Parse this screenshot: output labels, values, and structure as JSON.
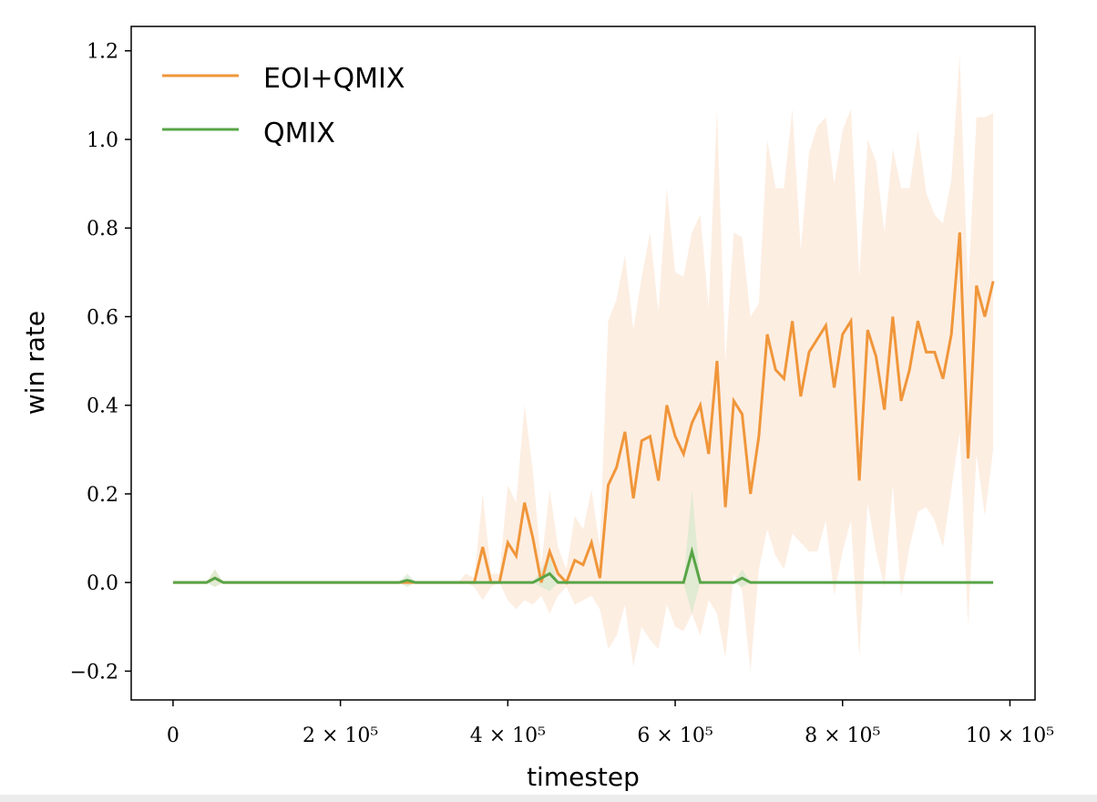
{
  "chart_data": {
    "type": "line",
    "xlabel": "timestep",
    "ylabel": "win rate",
    "xlim": [
      -50000,
      1030000
    ],
    "ylim": [
      -0.265,
      1.255
    ],
    "grid": false,
    "legend_position": "top-left",
    "x_ticks": [
      {
        "value": 0,
        "label": "0"
      },
      {
        "value": 200000,
        "label": "2 × 10⁵"
      },
      {
        "value": 400000,
        "label": "4 × 10⁵"
      },
      {
        "value": 600000,
        "label": "6 × 10⁵"
      },
      {
        "value": 800000,
        "label": "8 × 10⁵"
      },
      {
        "value": 1000000,
        "label": "10 × 10⁵"
      }
    ],
    "y_ticks": [
      {
        "value": -0.2,
        "label": "−0.2"
      },
      {
        "value": 0.0,
        "label": "0.0"
      },
      {
        "value": 0.2,
        "label": "0.2"
      },
      {
        "value": 0.4,
        "label": "0.4"
      },
      {
        "value": 0.6,
        "label": "0.6"
      },
      {
        "value": 0.8,
        "label": "0.8"
      },
      {
        "value": 1.0,
        "label": "1.0"
      },
      {
        "value": 1.2,
        "label": "1.2"
      }
    ],
    "series": [
      {
        "name": "EOI+QMIX",
        "color": "#f0963a",
        "band_color": "#fbe3cf",
        "x": [
          0,
          10000,
          20000,
          30000,
          40000,
          50000,
          60000,
          70000,
          80000,
          90000,
          100000,
          110000,
          120000,
          130000,
          140000,
          150000,
          160000,
          170000,
          180000,
          190000,
          200000,
          210000,
          220000,
          230000,
          240000,
          250000,
          260000,
          270000,
          280000,
          290000,
          300000,
          310000,
          320000,
          330000,
          340000,
          350000,
          360000,
          370000,
          380000,
          390000,
          400000,
          410000,
          420000,
          430000,
          440000,
          450000,
          460000,
          470000,
          480000,
          490000,
          500000,
          510000,
          520000,
          530000,
          540000,
          550000,
          560000,
          570000,
          580000,
          590000,
          600000,
          610000,
          620000,
          630000,
          640000,
          650000,
          660000,
          670000,
          680000,
          690000,
          700000,
          710000,
          720000,
          730000,
          740000,
          750000,
          760000,
          770000,
          780000,
          790000,
          800000,
          810000,
          820000,
          830000,
          840000,
          850000,
          860000,
          870000,
          880000,
          890000,
          900000,
          910000,
          920000,
          930000,
          940000,
          950000,
          960000,
          970000,
          980000
        ],
        "y": [
          0,
          0,
          0,
          0,
          0,
          0.01,
          0,
          0,
          0,
          0,
          0,
          0,
          0,
          0,
          0,
          0,
          0,
          0,
          0,
          0,
          0,
          0,
          0,
          0,
          0,
          0,
          0,
          0,
          0,
          0,
          0,
          0,
          0,
          0,
          0,
          0,
          0,
          0.08,
          0,
          0,
          0.09,
          0.06,
          0.18,
          0.1,
          0,
          0.07,
          0.02,
          0,
          0.05,
          0.04,
          0.09,
          0.01,
          0.22,
          0.26,
          0.34,
          0.19,
          0.32,
          0.33,
          0.23,
          0.4,
          0.33,
          0.29,
          0.36,
          0.4,
          0.29,
          0.5,
          0.17,
          0.41,
          0.38,
          0.2,
          0.33,
          0.56,
          0.48,
          0.46,
          0.59,
          0.42,
          0.52,
          0.55,
          0.58,
          0.44,
          0.56,
          0.59,
          0.23,
          0.57,
          0.51,
          0.39,
          0.6,
          0.41,
          0.48,
          0.59,
          0.52,
          0.52,
          0.46,
          0.56,
          0.79,
          0.28,
          0.67,
          0.6,
          0.68
        ],
        "lower": [
          0,
          0,
          0,
          0,
          0,
          -0.01,
          0,
          0,
          0,
          0,
          0,
          0,
          0,
          0,
          0,
          0,
          0,
          0,
          0,
          0,
          0,
          0,
          0,
          0,
          0,
          0,
          0,
          0,
          0,
          0,
          0,
          0,
          0,
          0,
          0,
          0,
          -0.01,
          -0.04,
          -0.01,
          0,
          -0.04,
          -0.06,
          -0.04,
          -0.05,
          -0.03,
          -0.07,
          -0.03,
          -0.01,
          -0.05,
          -0.04,
          -0.03,
          -0.06,
          -0.15,
          -0.12,
          -0.05,
          -0.19,
          -0.1,
          -0.13,
          -0.15,
          -0.05,
          -0.1,
          -0.11,
          -0.07,
          -0.12,
          -0.04,
          -0.07,
          -0.17,
          0.02,
          -0.02,
          -0.2,
          0.03,
          0.12,
          0.06,
          0.03,
          0.11,
          0.09,
          0.07,
          0.07,
          0.14,
          -0.03,
          0.07,
          0.14,
          -0.17,
          0.18,
          0.07,
          -0.01,
          0.22,
          -0.03,
          0.08,
          0.16,
          0.17,
          0.14,
          0.08,
          0.21,
          0.34,
          -0.1,
          0.29,
          0.15,
          0.3
        ],
        "upper": [
          0,
          0,
          0,
          0,
          0,
          0.03,
          0,
          0,
          0,
          0,
          0,
          0,
          0,
          0,
          0,
          0,
          0,
          0,
          0,
          0,
          0,
          0,
          0,
          0,
          0,
          0,
          0,
          0,
          0,
          0,
          0,
          0,
          0,
          0,
          0,
          0.02,
          0.01,
          0.2,
          0.02,
          0.02,
          0.22,
          0.18,
          0.4,
          0.25,
          0.04,
          0.21,
          0.08,
          0.03,
          0.15,
          0.12,
          0.21,
          0.08,
          0.59,
          0.64,
          0.74,
          0.57,
          0.69,
          0.79,
          0.61,
          0.89,
          0.7,
          0.69,
          0.79,
          0.83,
          0.62,
          1.07,
          0.5,
          0.79,
          0.78,
          0.6,
          0.63,
          1.0,
          0.89,
          0.89,
          1.07,
          0.75,
          0.97,
          1.03,
          1.05,
          0.9,
          1.02,
          1.07,
          0.69,
          1.0,
          0.95,
          0.79,
          0.98,
          0.89,
          0.89,
          1.02,
          0.88,
          0.83,
          0.81,
          0.91,
          1.19,
          0.66,
          1.05,
          1.05,
          1.06
        ]
      },
      {
        "name": "QMIX",
        "color": "#58a447",
        "band_color": "#d4e8cc",
        "x": [
          0,
          10000,
          20000,
          30000,
          40000,
          50000,
          60000,
          70000,
          80000,
          90000,
          100000,
          110000,
          120000,
          130000,
          140000,
          150000,
          160000,
          170000,
          180000,
          190000,
          200000,
          210000,
          220000,
          230000,
          240000,
          250000,
          260000,
          270000,
          280000,
          290000,
          300000,
          310000,
          320000,
          330000,
          340000,
          350000,
          360000,
          370000,
          380000,
          390000,
          400000,
          410000,
          420000,
          430000,
          440000,
          450000,
          460000,
          470000,
          480000,
          490000,
          500000,
          510000,
          520000,
          530000,
          540000,
          550000,
          560000,
          570000,
          580000,
          590000,
          600000,
          610000,
          620000,
          630000,
          640000,
          650000,
          660000,
          670000,
          680000,
          690000,
          700000,
          710000,
          720000,
          730000,
          740000,
          750000,
          760000,
          770000,
          780000,
          790000,
          800000,
          810000,
          820000,
          830000,
          840000,
          850000,
          860000,
          870000,
          880000,
          890000,
          900000,
          910000,
          920000,
          930000,
          940000,
          950000,
          960000,
          970000,
          980000
        ],
        "y": [
          0,
          0,
          0,
          0,
          0,
          0.01,
          0,
          0,
          0,
          0,
          0,
          0,
          0,
          0,
          0,
          0,
          0,
          0,
          0,
          0,
          0,
          0,
          0,
          0,
          0,
          0,
          0,
          0,
          0.005,
          0,
          0,
          0,
          0,
          0,
          0,
          0,
          0,
          0,
          0,
          0,
          0,
          0,
          0,
          0,
          0.01,
          0.02,
          0,
          0,
          0,
          0,
          0,
          0,
          0,
          0,
          0,
          0,
          0,
          0,
          0,
          0,
          0,
          0,
          0.07,
          0,
          0,
          0,
          0,
          0,
          0.01,
          0,
          0,
          0,
          0,
          0,
          0,
          0,
          0,
          0,
          0,
          0,
          0,
          0,
          0,
          0,
          0,
          0,
          0,
          0,
          0,
          0,
          0,
          0,
          0,
          0,
          0,
          0,
          0,
          0,
          0
        ],
        "lower": [
          0,
          0,
          0,
          0,
          0,
          -0.01,
          0,
          0,
          0,
          0,
          0,
          0,
          0,
          0,
          0,
          0,
          0,
          0,
          0,
          0,
          0,
          0,
          0,
          0,
          0,
          0,
          0,
          0,
          -0.01,
          0,
          0,
          0,
          0,
          0,
          0,
          0,
          0,
          0,
          0,
          0,
          0,
          0,
          0,
          0,
          -0.01,
          -0.02,
          0,
          0,
          0,
          0,
          0,
          0,
          0,
          0,
          0,
          0,
          0,
          0,
          0,
          0,
          0,
          0,
          -0.07,
          0,
          0,
          0,
          0,
          0,
          -0.01,
          0,
          0,
          0,
          0,
          0,
          0,
          0,
          0,
          0,
          0,
          0,
          0,
          0,
          0,
          0,
          0,
          0,
          0,
          0,
          0,
          0,
          0,
          0,
          0,
          0,
          0,
          0,
          0,
          0,
          0
        ],
        "upper": [
          0,
          0,
          0,
          0,
          0,
          0.03,
          0,
          0,
          0,
          0,
          0,
          0,
          0,
          0,
          0,
          0,
          0,
          0,
          0,
          0,
          0,
          0,
          0,
          0,
          0,
          0,
          0,
          0,
          0.02,
          0,
          0,
          0,
          0,
          0,
          0,
          0,
          0,
          0,
          0,
          0,
          0,
          0,
          0,
          0,
          0.03,
          0.06,
          0,
          0,
          0,
          0,
          0,
          0,
          0,
          0,
          0,
          0,
          0,
          0,
          0,
          0,
          0,
          0,
          0.21,
          0,
          0,
          0,
          0,
          0,
          0.03,
          0,
          0,
          0,
          0,
          0,
          0,
          0,
          0,
          0,
          0,
          0,
          0,
          0,
          0,
          0,
          0,
          0,
          0,
          0,
          0,
          0,
          0,
          0,
          0,
          0,
          0,
          0,
          0,
          0,
          0
        ]
      }
    ]
  }
}
